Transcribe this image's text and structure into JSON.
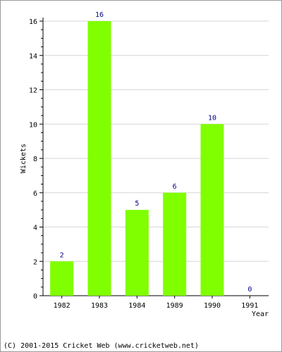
{
  "chart_data": {
    "type": "bar",
    "categories": [
      "1982",
      "1983",
      "1984",
      "1989",
      "1990",
      "1991"
    ],
    "values": [
      2,
      16,
      5,
      6,
      10,
      0
    ],
    "data_labels": [
      "2",
      "16",
      "5",
      "6",
      "10",
      "0"
    ],
    "ylabel": "Wickets",
    "xlabel": "Year",
    "ylim": [
      0,
      16
    ],
    "yticks": [
      0,
      2,
      4,
      6,
      8,
      10,
      12,
      14,
      16
    ],
    "ytick_labels": [
      "0",
      "2",
      "4",
      "6",
      "8",
      "10",
      "12",
      "14",
      "16"
    ],
    "grid": true,
    "bar_color": "#80ff00",
    "label_color": "#000080"
  },
  "footer": {
    "copyright": "(C) 2001-2015 Cricket Web (www.cricketweb.net)"
  }
}
